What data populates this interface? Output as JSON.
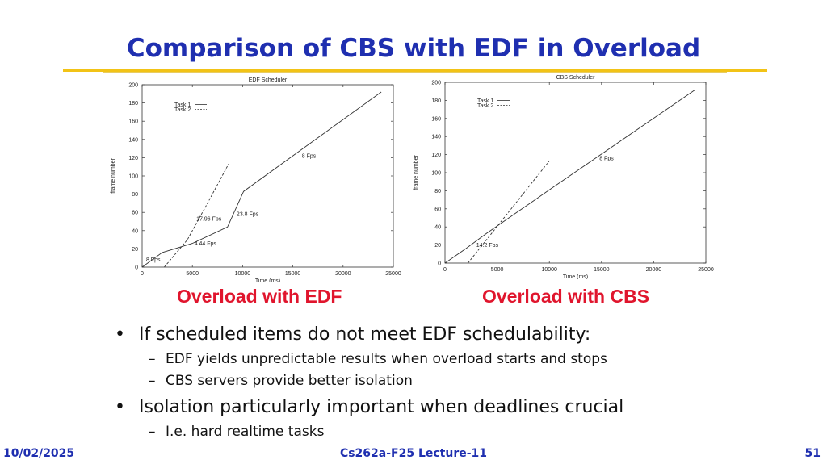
{
  "slide": {
    "title": "Comparison of CBS with EDF in Overload",
    "bullets": [
      {
        "text": "If scheduled items do not meet EDF schedulability:",
        "sub": [
          "EDF yields unpredictable results when overload starts and stops",
          "CBS servers provide better isolation"
        ]
      },
      {
        "text": "Isolation particularly important when deadlines crucial",
        "sub": [
          "I.e. hard realtime tasks"
        ]
      }
    ],
    "bullet_glyph": "•",
    "sub_glyph": "–",
    "footer": {
      "date": "10/02/2025",
      "course": "Cs262a-F25 Lecture-11",
      "page": "51"
    },
    "colors": {
      "title": "#1f2fb0",
      "accent_rule": "#f2c316",
      "caption": "#e0152d"
    }
  },
  "chart_data": [
    {
      "type": "line",
      "title": "EDF Scheduler",
      "caption": "Overload with EDF",
      "xlabel": "Time (ms)",
      "ylabel": "frame number",
      "xlim": [
        0,
        25000
      ],
      "ylim": [
        0,
        200
      ],
      "xticks": [
        0,
        5000,
        10000,
        15000,
        20000,
        25000
      ],
      "yticks": [
        0,
        20,
        40,
        60,
        80,
        100,
        120,
        140,
        160,
        180,
        200
      ],
      "legend_position": "top-left",
      "grid": false,
      "series": [
        {
          "name": "Task 1",
          "style": "solid",
          "x": [
            0,
            2000,
            3500,
            5000,
            8500,
            10100,
            23800
          ],
          "y": [
            0,
            16,
            21,
            26,
            44,
            83,
            192
          ]
        },
        {
          "name": "Task 2",
          "style": "dashed",
          "x": [
            2200,
            4500,
            6500,
            8600
          ],
          "y": [
            0,
            30,
            70,
            113
          ]
        }
      ],
      "annotations": [
        {
          "text": "8 Fps",
          "x": 400,
          "y": 6
        },
        {
          "text": "4.44 Fps",
          "x": 5200,
          "y": 24
        },
        {
          "text": "17.96 Fps",
          "x": 5400,
          "y": 51
        },
        {
          "text": "23.8 Fps",
          "x": 9400,
          "y": 56
        },
        {
          "text": "8 Fps",
          "x": 15900,
          "y": 120
        }
      ]
    },
    {
      "type": "line",
      "title": "CBS Scheduler",
      "caption": "Overload with CBS",
      "xlabel": "Time (ms)",
      "ylabel": "frame number",
      "xlim": [
        0,
        25000
      ],
      "ylim": [
        0,
        200
      ],
      "xticks": [
        0,
        5000,
        10000,
        15000,
        20000,
        25000
      ],
      "yticks": [
        0,
        20,
        40,
        60,
        80,
        100,
        120,
        140,
        160,
        180,
        200
      ],
      "legend_position": "top-left",
      "grid": false,
      "series": [
        {
          "name": "Task 1",
          "style": "solid",
          "x": [
            0,
            2000,
            4000,
            6000,
            8000,
            10000,
            24000
          ],
          "y": [
            0,
            16,
            33,
            49,
            65,
            81,
            192
          ]
        },
        {
          "name": "Task 2",
          "style": "dashed",
          "x": [
            2200,
            6000,
            10000
          ],
          "y": [
            0,
            55,
            113
          ]
        }
      ],
      "annotations": [
        {
          "text": "14.2 Fps",
          "x": 3000,
          "y": 18
        },
        {
          "text": "8 Fps",
          "x": 14800,
          "y": 114
        }
      ]
    }
  ]
}
